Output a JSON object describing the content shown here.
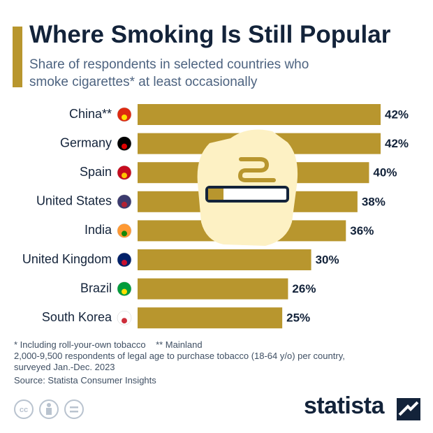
{
  "chart_data": {
    "type": "hbar",
    "title": "Where Smoking Is Still Popular",
    "subtitle": "Share of respondents in selected countries who smoke cigarettes* at least occasionally",
    "categories": [
      "China**",
      "Germany",
      "Spain",
      "United States",
      "India",
      "United Kingdom",
      "Brazil",
      "South Korea"
    ],
    "values": [
      42,
      42,
      40,
      38,
      36,
      30,
      26,
      25
    ],
    "value_labels": [
      "42%",
      "42%",
      "40%",
      "38%",
      "36%",
      "30%",
      "26%",
      "25%"
    ],
    "color": "#b8962e",
    "notes": [
      "* Including roll-your-own tobacco",
      "** Mainland",
      "2,000-9,500 respondents of legal age to purchase tobacco (18-64 y/o) per country, surveyed Jan.-Dec. 2023"
    ],
    "source": "Source: Statista Consumer Insights",
    "brand": "statista"
  }
}
